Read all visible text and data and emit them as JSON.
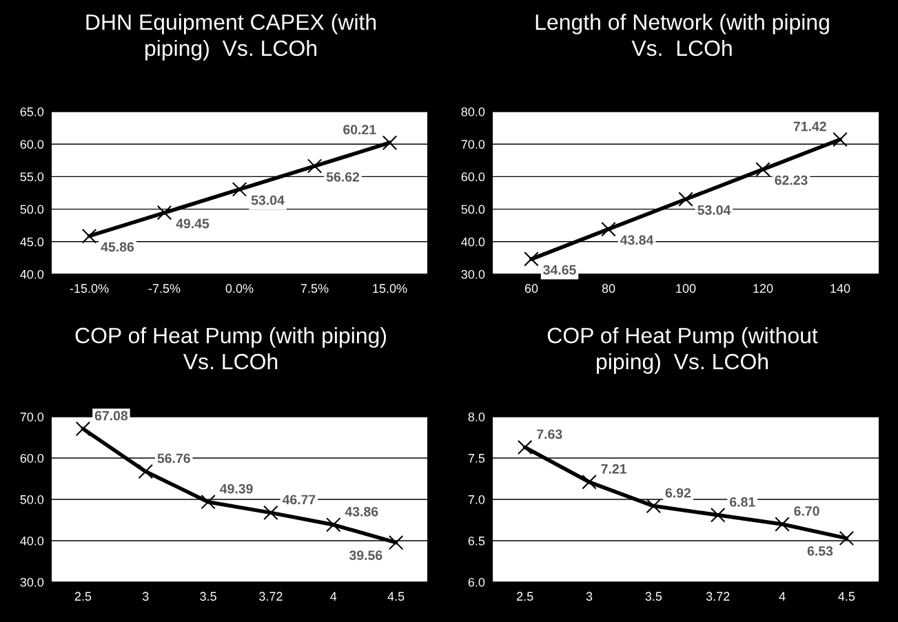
{
  "chart_data": [
    {
      "type": "line",
      "title": "DHN Equipment CAPEX (with\npiping)  Vs. LCOh",
      "categories": [
        "-15.0%",
        "-7.5%",
        "0.0%",
        "7.5%",
        "15.0%"
      ],
      "series": [
        {
          "color": "#000000",
          "values": [
            45.86,
            49.45,
            53.04,
            56.62,
            60.21
          ],
          "value_labels": [
            "45.86",
            "49.45",
            "53.04",
            "56.62",
            "60.21"
          ]
        }
      ],
      "ylim": [
        40,
        65
      ],
      "yticks": [
        {
          "value": 40,
          "label": "40.0"
        },
        {
          "value": 45,
          "label": "45.0"
        },
        {
          "value": 50,
          "label": "50.0"
        },
        {
          "value": 55,
          "label": "55.0"
        },
        {
          "value": 60,
          "label": "60.0"
        },
        {
          "value": 65,
          "label": "65.0"
        }
      ],
      "grid": "y",
      "marker": "cross",
      "line_style": "solid"
    },
    {
      "type": "line",
      "title": "Length of Network (with piping\nVs.  LCOh",
      "categories": [
        "60",
        "80",
        "100",
        "120",
        "140"
      ],
      "series": [
        {
          "color": "#000000",
          "values": [
            34.65,
            43.84,
            53.04,
            62.23,
            71.42
          ],
          "value_labels": [
            "34.65",
            "43.84",
            "53.04",
            "62.23",
            "71.42"
          ]
        }
      ],
      "ylim": [
        30,
        80
      ],
      "yticks": [
        {
          "value": 30,
          "label": "30.0"
        },
        {
          "value": 40,
          "label": "40.0"
        },
        {
          "value": 50,
          "label": "50.0"
        },
        {
          "value": 60,
          "label": "60.0"
        },
        {
          "value": 70,
          "label": "70.0"
        },
        {
          "value": 80,
          "label": "80.0"
        }
      ],
      "grid": "y",
      "marker": "cross",
      "line_style": "solid"
    },
    {
      "type": "line",
      "title": "COP of Heat Pump (with piping)\nVs. LCOh",
      "categories": [
        "2.5",
        "3",
        "3.5",
        "3.72",
        "4",
        "4.5"
      ],
      "series": [
        {
          "color": "#000000",
          "values": [
            67.08,
            56.76,
            49.39,
            46.77,
            43.86,
            39.56
          ],
          "value_labels": [
            "67.08",
            "56.76",
            "49.39",
            "46.77",
            "43.86",
            "39.56"
          ]
        }
      ],
      "ylim": [
        30,
        70
      ],
      "yticks": [
        {
          "value": 30,
          "label": "30.0"
        },
        {
          "value": 40,
          "label": "40.0"
        },
        {
          "value": 50,
          "label": "50.0"
        },
        {
          "value": 60,
          "label": "60.0"
        },
        {
          "value": 70,
          "label": "70.0"
        }
      ],
      "grid": "y",
      "marker": "cross",
      "line_style": "solid"
    },
    {
      "type": "line",
      "title": "COP of Heat Pump (without\npiping)  Vs. LCOh",
      "categories": [
        "2.5",
        "3",
        "3.5",
        "3.72",
        "4",
        "4.5"
      ],
      "series": [
        {
          "color": "#000000",
          "values": [
            7.63,
            7.21,
            6.92,
            6.81,
            6.7,
            6.53
          ],
          "value_labels": [
            "7.63",
            "7.21",
            "6.92",
            "6.81",
            "6.70",
            "6.53"
          ]
        }
      ],
      "ylim": [
        6,
        8
      ],
      "yticks": [
        {
          "value": 6,
          "label": "6.0"
        },
        6.5,
        {
          "value": 7,
          "label": "7.0"
        },
        7.5,
        {
          "value": 8,
          "label": "8.0"
        }
      ],
      "grid": "y",
      "marker": "cross",
      "line_style": "solid"
    }
  ]
}
